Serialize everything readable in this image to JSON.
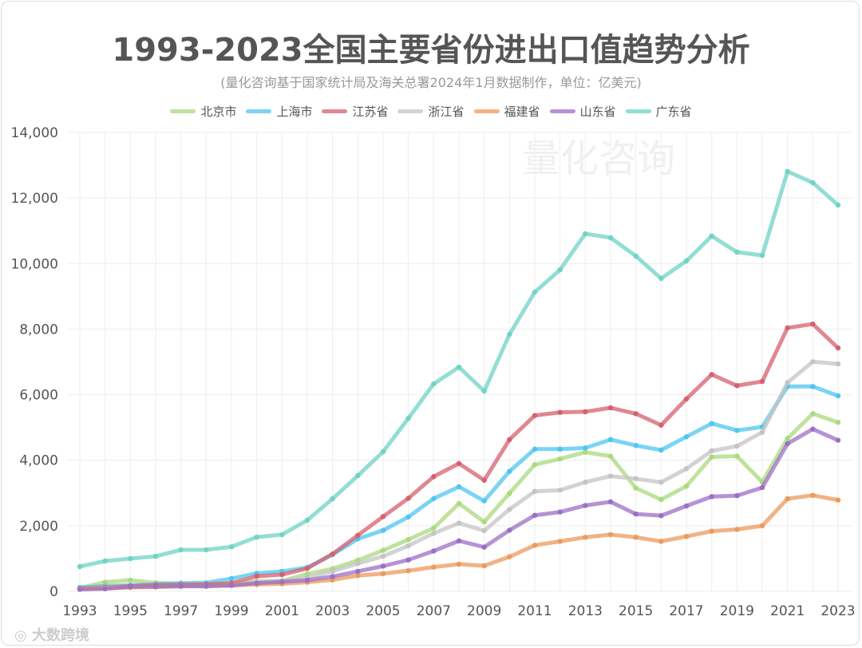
{
  "chart_data": {
    "type": "line",
    "title": "1993-2023全国主要省份进出口值趋势分析",
    "subtitle": "(量化咨询基于国家统计局及海关总署2024年1月数据制作，单位：亿美元)",
    "xlabel": "",
    "ylabel": "",
    "x": [
      1993,
      1994,
      1995,
      1996,
      1997,
      1998,
      1999,
      2000,
      2001,
      2002,
      2003,
      2004,
      2005,
      2006,
      2007,
      2008,
      2009,
      2010,
      2011,
      2012,
      2013,
      2014,
      2015,
      2016,
      2017,
      2018,
      2019,
      2020,
      2021,
      2022,
      2023
    ],
    "x_ticks": [
      "1993",
      "1995",
      "1997",
      "1999",
      "2001",
      "2003",
      "2005",
      "2007",
      "2009",
      "2011",
      "2013",
      "2015",
      "2017",
      "2019",
      "2021",
      "2023"
    ],
    "y_ticks": [
      "0",
      "2,000",
      "4,000",
      "6,000",
      "8,000",
      "10,000",
      "12,000",
      "14,000"
    ],
    "ylim": [
      0,
      14000
    ],
    "grid": true,
    "legend_position": "top",
    "series": [
      {
        "name": "北京市",
        "color": "#a9da7e",
        "values": [
          100,
          280,
          340,
          260,
          230,
          220,
          240,
          300,
          320,
          530,
          690,
          950,
          1250,
          1580,
          1930,
          2680,
          2120,
          2990,
          3865,
          4040,
          4245,
          4120,
          3150,
          2800,
          3210,
          4100,
          4125,
          3335,
          4665,
          5420,
          5155
        ]
      },
      {
        "name": "上海市",
        "color": "#4fc6f0",
        "values": [
          120,
          160,
          190,
          220,
          250,
          260,
          390,
          550,
          610,
          730,
          1120,
          1600,
          1860,
          2270,
          2830,
          3190,
          2760,
          3660,
          4340,
          4340,
          4375,
          4630,
          4450,
          4310,
          4715,
          5120,
          4910,
          5015,
          6250,
          6250,
          5965
        ]
      },
      {
        "name": "江苏省",
        "color": "#d6606e",
        "values": [
          90,
          120,
          160,
          190,
          200,
          210,
          250,
          460,
          510,
          700,
          1140,
          1710,
          2280,
          2840,
          3500,
          3900,
          3390,
          4630,
          5365,
          5460,
          5480,
          5600,
          5420,
          5070,
          5870,
          6615,
          6275,
          6405,
          8040,
          8155,
          7425
        ]
      },
      {
        "name": "浙江省",
        "color": "#c4c4c4",
        "values": [
          70,
          100,
          130,
          140,
          150,
          150,
          180,
          280,
          330,
          420,
          610,
          850,
          1070,
          1390,
          1770,
          2080,
          1850,
          2500,
          3050,
          3085,
          3330,
          3515,
          3435,
          3330,
          3740,
          4285,
          4430,
          4855,
          6370,
          7005,
          6940
        ]
      },
      {
        "name": "福建省",
        "color": "#ec9a5c",
        "values": [
          60,
          90,
          120,
          130,
          160,
          160,
          180,
          210,
          230,
          280,
          350,
          480,
          540,
          630,
          740,
          830,
          780,
          1055,
          1405,
          1525,
          1650,
          1730,
          1650,
          1525,
          1675,
          1835,
          1890,
          2000,
          2825,
          2930,
          2785
        ]
      },
      {
        "name": "山东省",
        "color": "#9c6fc6",
        "values": [
          60,
          80,
          140,
          150,
          160,
          160,
          180,
          250,
          290,
          340,
          450,
          610,
          770,
          960,
          1230,
          1540,
          1350,
          1865,
          2320,
          2420,
          2620,
          2730,
          2360,
          2310,
          2605,
          2890,
          2920,
          3165,
          4505,
          4950,
          4610
        ]
      },
      {
        "name": "广东省",
        "color": "#6fd3c6",
        "values": [
          755,
          925,
          1000,
          1070,
          1265,
          1265,
          1360,
          1655,
          1730,
          2170,
          2825,
          3530,
          4260,
          5280,
          6330,
          6840,
          6110,
          7840,
          9130,
          9810,
          10910,
          10790,
          10230,
          9545,
          10080,
          10840,
          10350,
          10250,
          12810,
          12470,
          11785
        ]
      }
    ]
  },
  "watermark": "量化咨询",
  "logo": "大数跨境"
}
